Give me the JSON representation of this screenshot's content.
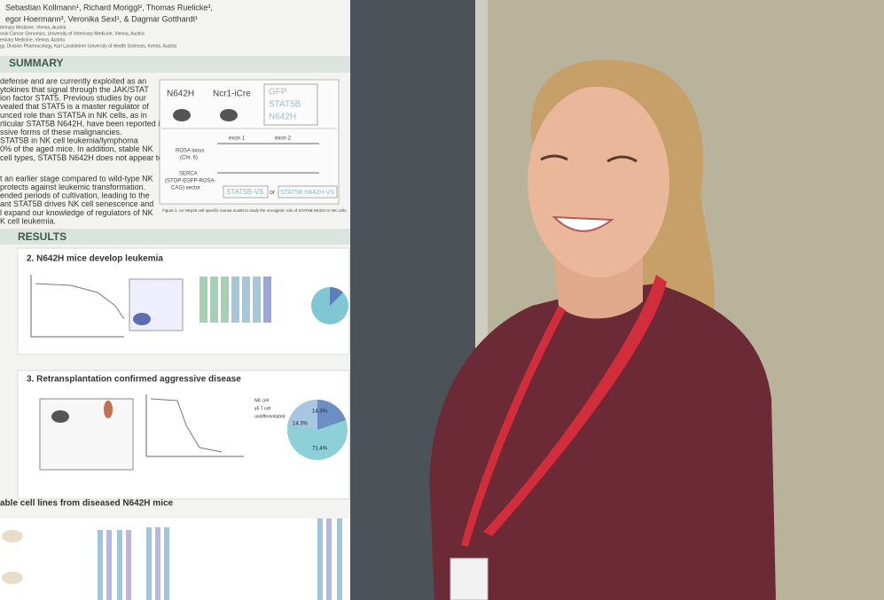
{
  "poster": {
    "authors": [
      "Sebastian Kollmann¹, Richard Moriggl², Thomas Ruelicke³,",
      "egor Hoermann³, Veronika Sexl¹, & Dagmar Gotthardt¹"
    ],
    "affiliations": [
      "terinary Medicine, Vienna, Austria",
      "onal Cancer Genomics, University of Veterinary Medicine, Vienna, Austria",
      "erinary Medicine, Vienna, Austria",
      "gy, Division Pharmacology, Karl Landsteiner University of Health Sciences, Krems, Austria"
    ],
    "summary_heading": "SUMMARY",
    "summary_lines": [
      "defense and are currently exploited as an",
      "ytokines that signal through the JAK/STAT",
      "ion factor STAT5. Previous studies by our",
      "vealed that STAT5 is a master regulator of",
      "unced role than STAT5A in NK cells, as in",
      "rticular STAT5B N642H, have been reported in",
      "ssive forms of these malignancies.",
      "STAT5B in NK cell leukemia/lymphoma",
      "0% of the aged mice. In addition, stable NK",
      "cell types, STAT5B N642H does not appear to"
    ],
    "summary_lines_2": [
      "t an earlier stage compared to wild-type NK",
      "protects against leukemic transformation.",
      "ended periods of cultivation, leading to the",
      "ant STAT5B drives NK cell senescence and",
      "l expand our knowledge of regulators of NK",
      "K cell leukemia."
    ],
    "figure1": {
      "mouse_a": "N642H",
      "mouse_b": "Ncr1-iCre",
      "genotypes": [
        "GFP",
        "STAT5B",
        "N642H"
      ],
      "locus": "ROSA locus",
      "chr": "(Chr. 6)",
      "exon1": "exon 1",
      "exon2": "exon 2",
      "vector": "SERCA",
      "vector_detail": "(STOP-EGFP-ROSA-",
      "vector_detail_2": "CAG) vector",
      "construct_a": "STAT5B-VS",
      "or": "or",
      "construct_b": "STAT5B N642H-VS",
      "caption": "Figure 1. An NKp46 cell-specific mouse model to study the oncogenic role of STAT5B N642H in NK cells."
    },
    "results_heading": "RESULTS",
    "section2_title": "2. N642H mice develop leukemia",
    "section3_title": "3. Retransplantation confirmed aggressive disease",
    "section4_title": "able cell lines from diseased N642H mice",
    "pie_labels": [
      "14.3%",
      "14.3%",
      "71.4%"
    ],
    "legend3": [
      "NK cell",
      "γδ T cell",
      "undifferentiated"
    ]
  }
}
